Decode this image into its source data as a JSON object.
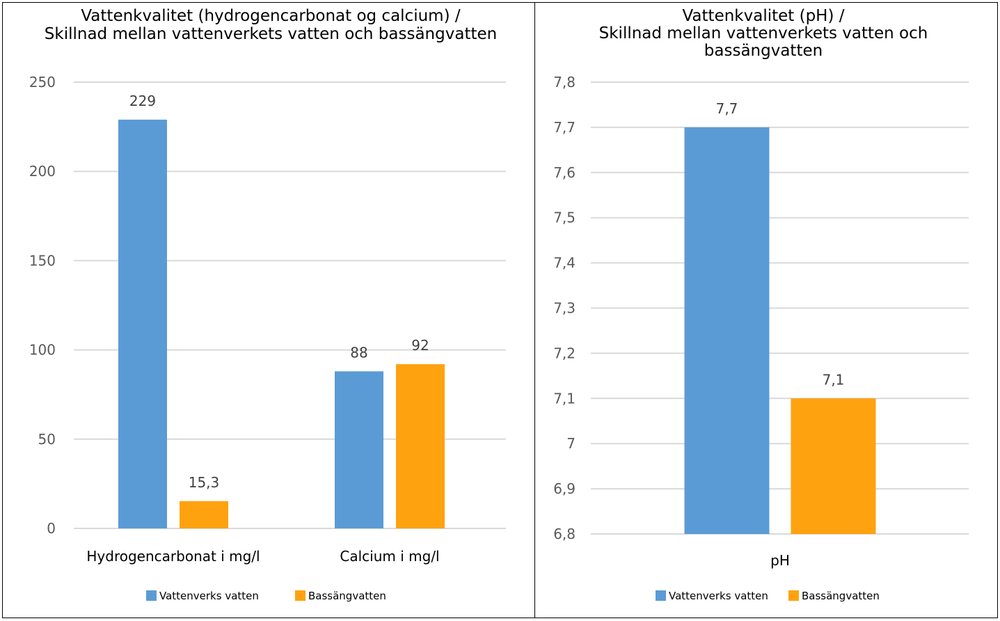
{
  "charts": [
    {
      "id": "left",
      "title_lines": [
        "Vattenkvalitet (hydrogencarbonat og calcium) /",
        "Skillnad mellan vattenverkets vatten och bassängvatten"
      ],
      "chart_data": {
        "type": "bar",
        "categories": [
          "Hydrogencarbonat i mg/l",
          "Calcium i mg/l"
        ],
        "series": [
          {
            "name": "Vattenverks vatten",
            "color": "#5b9bd5",
            "values": [
              229,
              88
            ],
            "labels": [
              "229",
              "88"
            ]
          },
          {
            "name": "Bassängvatten",
            "color": "#ffa20f",
            "values": [
              15.3,
              92
            ],
            "labels": [
              "15,3",
              "92"
            ]
          }
        ],
        "ylim": [
          0,
          250
        ],
        "yticks": [
          0,
          50,
          100,
          150,
          200,
          250
        ],
        "ytick_labels": [
          "0",
          "50",
          "100",
          "150",
          "200",
          "250"
        ],
        "grid": true,
        "legend": "bottom"
      }
    },
    {
      "id": "right",
      "title_lines": [
        "Vattenkvalitet (pH) /",
        "Skillnad mellan vattenverkets vatten och",
        "bassängvatten"
      ],
      "chart_data": {
        "type": "bar",
        "categories": [
          "pH"
        ],
        "series": [
          {
            "name": "Vattenverks vatten",
            "color": "#5b9bd5",
            "values": [
              7.7
            ],
            "labels": [
              "7,7"
            ]
          },
          {
            "name": "Bassängvatten",
            "color": "#ffa20f",
            "values": [
              7.1
            ],
            "labels": [
              "7,1"
            ]
          }
        ],
        "ylim": [
          6.8,
          7.8
        ],
        "yticks": [
          6.8,
          6.9,
          7.0,
          7.1,
          7.2,
          7.3,
          7.4,
          7.5,
          7.6,
          7.7,
          7.8
        ],
        "ytick_labels": [
          "6,8",
          "6,9",
          "7",
          "7,1",
          "7,2",
          "7,3",
          "7,4",
          "7,5",
          "7,6",
          "7,7",
          "7,8"
        ],
        "grid": true,
        "legend": "bottom"
      }
    }
  ]
}
